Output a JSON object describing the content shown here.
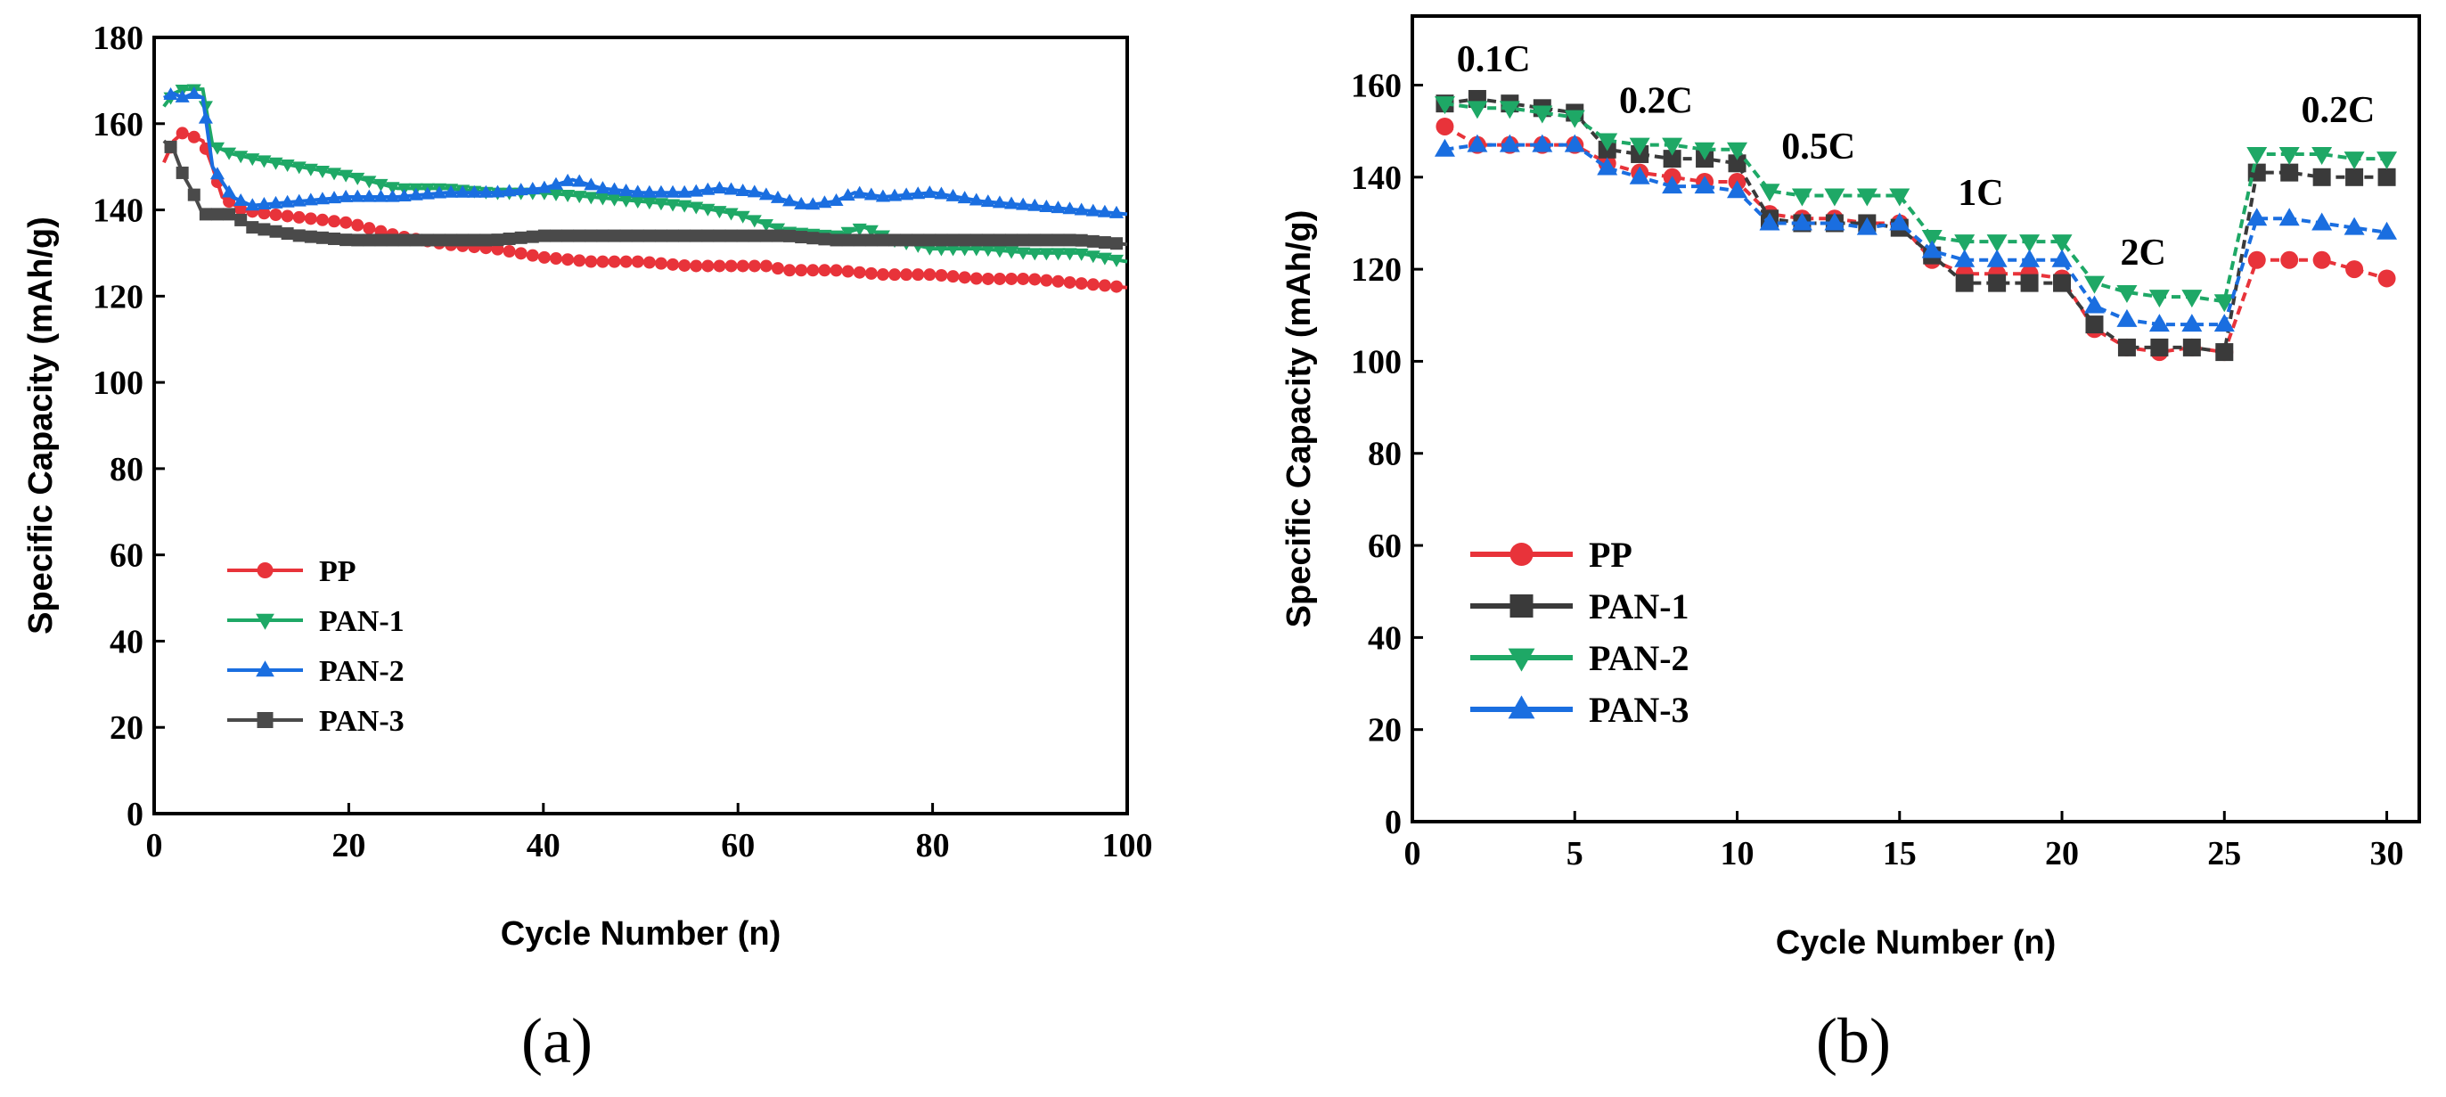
{
  "figure": {
    "panel_labels": [
      "(a)",
      "(b)"
    ]
  },
  "colors": {
    "PP": "#e8333a",
    "PAN1_a": "#1ea866",
    "PAN2_a": "#1a6ee0",
    "PAN3_a": "#4a4a4a",
    "PAN1_b": "#3a3a3a",
    "PAN2_b": "#1ea866",
    "PAN3_b": "#1a6ee0"
  },
  "chart_data": [
    {
      "id": "a",
      "type": "line",
      "title": "",
      "xlabel": "Cycle Number (n)",
      "ylabel": "Specific Capacity (mAh/g)",
      "xlim": [
        0,
        100
      ],
      "ylim": [
        0,
        180
      ],
      "xticks": [
        0,
        20,
        40,
        60,
        80,
        100
      ],
      "yticks": [
        0,
        20,
        40,
        60,
        80,
        100,
        120,
        140,
        160,
        180
      ],
      "legend_position": "lower-left",
      "series": [
        {
          "name": "PP",
          "color": "#e8333a",
          "marker": "circle",
          "points": [
            [
              1,
              151
            ],
            [
              2,
              156
            ],
            [
              3,
              158
            ],
            [
              4,
              157
            ],
            [
              5,
              156
            ],
            [
              6,
              150
            ],
            [
              7,
              143
            ],
            [
              9,
              140
            ],
            [
              12,
              139
            ],
            [
              16,
              138
            ],
            [
              20,
              137
            ],
            [
              25,
              134
            ],
            [
              30,
              132
            ],
            [
              35,
              131
            ],
            [
              40,
              129
            ],
            [
              45,
              128
            ],
            [
              50,
              128
            ],
            [
              55,
              127
            ],
            [
              60,
              127
            ],
            [
              63,
              127
            ],
            [
              65,
              126
            ],
            [
              70,
              126
            ],
            [
              75,
              125
            ],
            [
              80,
              125
            ],
            [
              85,
              124
            ],
            [
              90,
              124
            ],
            [
              95,
              123
            ],
            [
              100,
              122
            ]
          ]
        },
        {
          "name": "PAN-1",
          "color": "#1ea866",
          "marker": "triangle-down",
          "points": [
            [
              1,
              164
            ],
            [
              2,
              167
            ],
            [
              3,
              168
            ],
            [
              4,
              168
            ],
            [
              5,
              168
            ],
            [
              6,
              155
            ],
            [
              8,
              153
            ],
            [
              10,
              152
            ],
            [
              15,
              150
            ],
            [
              20,
              148
            ],
            [
              25,
              145
            ],
            [
              30,
              145
            ],
            [
              35,
              144
            ],
            [
              40,
              144
            ],
            [
              45,
              143
            ],
            [
              50,
              142
            ],
            [
              55,
              141
            ],
            [
              60,
              139
            ],
            [
              65,
              135
            ],
            [
              70,
              134
            ],
            [
              73,
              136
            ],
            [
              76,
              133
            ],
            [
              80,
              131
            ],
            [
              85,
              131
            ],
            [
              90,
              130
            ],
            [
              95,
              130
            ],
            [
              100,
              128
            ]
          ]
        },
        {
          "name": "PAN-2",
          "color": "#1a6ee0",
          "marker": "triangle-up",
          "points": [
            [
              1,
              166
            ],
            [
              2,
              167
            ],
            [
              3,
              166
            ],
            [
              4,
              167
            ],
            [
              5,
              166
            ],
            [
              6,
              150
            ],
            [
              8,
              143
            ],
            [
              10,
              141
            ],
            [
              15,
              142
            ],
            [
              20,
              143
            ],
            [
              25,
              143
            ],
            [
              30,
              144
            ],
            [
              35,
              144
            ],
            [
              40,
              145
            ],
            [
              43,
              147
            ],
            [
              46,
              145
            ],
            [
              50,
              144
            ],
            [
              55,
              144
            ],
            [
              58,
              145
            ],
            [
              62,
              144
            ],
            [
              67,
              141
            ],
            [
              70,
              142
            ],
            [
              72,
              144
            ],
            [
              75,
              143
            ],
            [
              80,
              144
            ],
            [
              85,
              142
            ],
            [
              90,
              141
            ],
            [
              95,
              140
            ],
            [
              100,
              139
            ]
          ]
        },
        {
          "name": "PAN-3",
          "color": "#4a4a4a",
          "marker": "square",
          "points": [
            [
              1,
              156
            ],
            [
              2,
              154
            ],
            [
              3,
              148
            ],
            [
              4,
              144
            ],
            [
              5,
              139
            ],
            [
              6,
              139
            ],
            [
              8,
              139
            ],
            [
              10,
              136
            ],
            [
              15,
              134
            ],
            [
              20,
              133
            ],
            [
              25,
              133
            ],
            [
              30,
              133
            ],
            [
              35,
              133
            ],
            [
              40,
              134
            ],
            [
              45,
              134
            ],
            [
              50,
              134
            ],
            [
              55,
              134
            ],
            [
              60,
              134
            ],
            [
              65,
              134
            ],
            [
              70,
              133
            ],
            [
              75,
              133
            ],
            [
              80,
              133
            ],
            [
              85,
              133
            ],
            [
              90,
              133
            ],
            [
              95,
              133
            ],
            [
              100,
              132
            ]
          ]
        }
      ]
    },
    {
      "id": "b",
      "type": "line",
      "title": "",
      "xlabel": "Cycle Number (n)",
      "ylabel": "Specific Capacity (mAh/g)",
      "xlim": [
        0,
        31
      ],
      "ylim": [
        0,
        175
      ],
      "xticks": [
        0,
        5,
        10,
        15,
        20,
        25,
        30
      ],
      "yticks": [
        0,
        20,
        40,
        60,
        80,
        100,
        120,
        140,
        160
      ],
      "legend_position": "lower-left",
      "annotations": [
        {
          "text": "0.1C",
          "x": 2.5,
          "y": 163
        },
        {
          "text": "0.2C",
          "x": 7.5,
          "y": 154
        },
        {
          "text": "0.5C",
          "x": 12.5,
          "y": 144
        },
        {
          "text": "1C",
          "x": 17.5,
          "y": 134
        },
        {
          "text": "2C",
          "x": 22.5,
          "y": 121
        },
        {
          "text": "0.2C",
          "x": 28.5,
          "y": 152
        }
      ],
      "series": [
        {
          "name": "PP",
          "color": "#e8333a",
          "marker": "circle",
          "values": [
            151,
            147,
            147,
            147,
            147,
            143,
            141,
            140,
            139,
            139,
            132,
            131,
            131,
            130,
            130,
            122,
            119,
            119,
            119,
            118,
            107,
            103,
            102,
            103,
            102,
            122,
            122,
            122,
            120,
            118
          ]
        },
        {
          "name": "PAN-1",
          "color": "#3a3a3a",
          "marker": "square",
          "values": [
            156,
            157,
            156,
            155,
            154,
            146,
            145,
            144,
            144,
            143,
            131,
            130,
            130,
            130,
            129,
            123,
            117,
            117,
            117,
            117,
            108,
            103,
            103,
            103,
            102,
            141,
            141,
            140,
            140,
            140
          ]
        },
        {
          "name": "PAN-2",
          "color": "#1ea866",
          "marker": "triangle-down",
          "values": [
            156,
            155,
            155,
            154,
            153,
            148,
            147,
            147,
            146,
            146,
            137,
            136,
            136,
            136,
            136,
            127,
            126,
            126,
            126,
            126,
            117,
            115,
            114,
            114,
            113,
            145,
            145,
            145,
            144,
            144
          ]
        },
        {
          "name": "PAN-3",
          "color": "#1a6ee0",
          "marker": "triangle-up",
          "values": [
            146,
            147,
            147,
            147,
            147,
            142,
            140,
            138,
            138,
            137,
            130,
            130,
            130,
            129,
            130,
            124,
            122,
            122,
            122,
            122,
            112,
            109,
            108,
            108,
            108,
            131,
            131,
            130,
            129,
            128
          ]
        }
      ]
    }
  ]
}
